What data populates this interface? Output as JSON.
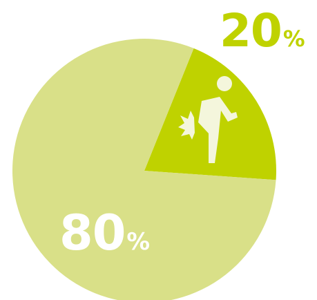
{
  "chart_data": {
    "type": "pie",
    "slices": [
      {
        "value": 20,
        "label_number": "20",
        "label_unit": "%",
        "color": "#bfd200",
        "label_color": "#bfd200",
        "icon": "back-pain-person-icon"
      },
      {
        "value": 80,
        "label_number": "80",
        "label_unit": "%",
        "color": "#d9e088",
        "label_color": "#ffffff"
      }
    ]
  }
}
